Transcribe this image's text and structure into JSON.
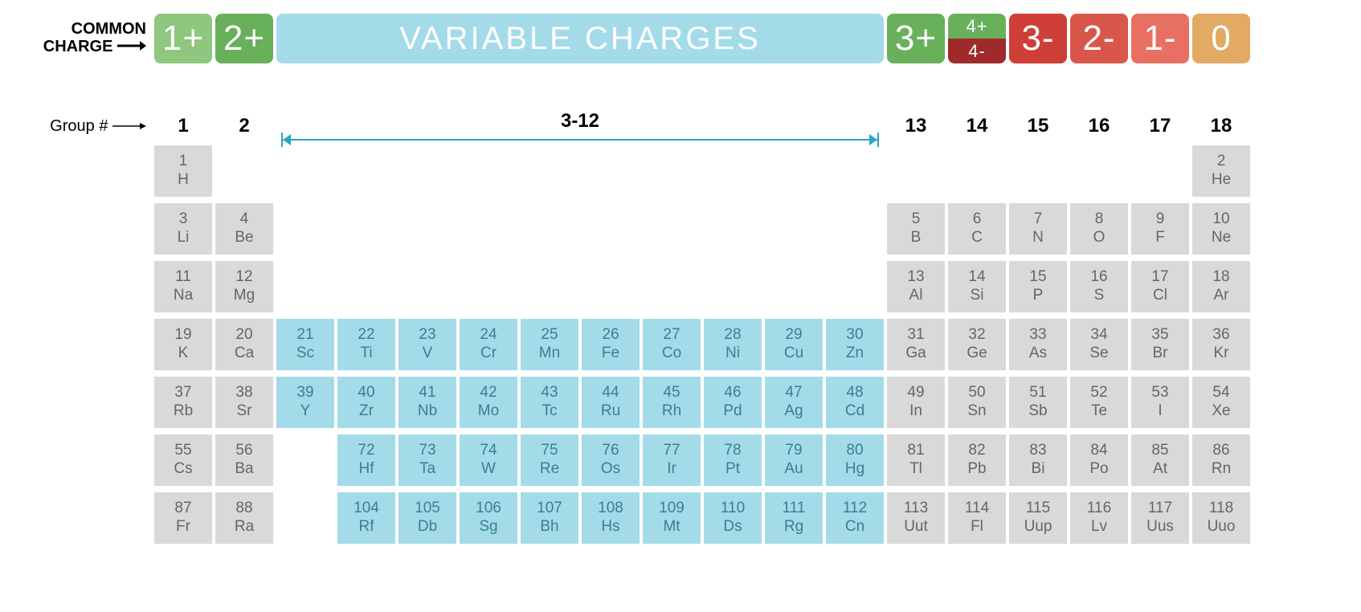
{
  "labels": {
    "common_charge_l1": "COMMON",
    "common_charge_l2": "CHARGE",
    "group_num": "Group #"
  },
  "charges": [
    {
      "text": "1+",
      "bg": "#8fc77e",
      "width_units": 1
    },
    {
      "text": "2+",
      "bg": "#69b05b",
      "width_units": 1
    },
    {
      "text": "VARIABLE CHARGES",
      "bg": "#a4dbe8",
      "width_units": 10,
      "variable": true
    },
    {
      "text": "3+",
      "bg": "#69b05b",
      "width_units": 1
    },
    {
      "split": true,
      "top": "4+",
      "top_bg": "#69b05b",
      "bottom": "4-",
      "bottom_bg": "#9e2a2a",
      "width_units": 1
    },
    {
      "text": "3-",
      "bg": "#ce3f37",
      "width_units": 1
    },
    {
      "text": "2-",
      "bg": "#d9574a",
      "width_units": 1
    },
    {
      "text": "1-",
      "bg": "#e77062",
      "width_units": 1
    },
    {
      "text": "0",
      "bg": "#e2aa63",
      "width_units": 1
    }
  ],
  "group_span": {
    "label": "3-12",
    "line_color": "#2aa7c4"
  },
  "groups_left": [
    "1",
    "2"
  ],
  "groups_right": [
    "13",
    "14",
    "15",
    "16",
    "17",
    "18"
  ],
  "colors": {
    "elem_main_bg": "#d9d9d9",
    "elem_main_fg": "#666666",
    "elem_trans_bg": "#a4dbe8",
    "elem_trans_fg": "#3a7f91"
  },
  "rows": [
    [
      {
        "n": "1",
        "s": "H"
      },
      null,
      null,
      null,
      null,
      null,
      null,
      null,
      null,
      null,
      null,
      null,
      null,
      null,
      null,
      null,
      null,
      {
        "n": "2",
        "s": "He"
      }
    ],
    [
      {
        "n": "3",
        "s": "Li"
      },
      {
        "n": "4",
        "s": "Be"
      },
      null,
      null,
      null,
      null,
      null,
      null,
      null,
      null,
      null,
      null,
      {
        "n": "5",
        "s": "B"
      },
      {
        "n": "6",
        "s": "C"
      },
      {
        "n": "7",
        "s": "N"
      },
      {
        "n": "8",
        "s": "O"
      },
      {
        "n": "9",
        "s": "F"
      },
      {
        "n": "10",
        "s": "Ne"
      }
    ],
    [
      {
        "n": "11",
        "s": "Na"
      },
      {
        "n": "12",
        "s": "Mg"
      },
      null,
      null,
      null,
      null,
      null,
      null,
      null,
      null,
      null,
      null,
      {
        "n": "13",
        "s": "Al"
      },
      {
        "n": "14",
        "s": "Si"
      },
      {
        "n": "15",
        "s": "P"
      },
      {
        "n": "16",
        "s": "S"
      },
      {
        "n": "17",
        "s": "Cl"
      },
      {
        "n": "18",
        "s": "Ar"
      }
    ],
    [
      {
        "n": "19",
        "s": "K"
      },
      {
        "n": "20",
        "s": "Ca"
      },
      {
        "n": "21",
        "s": "Sc",
        "t": true
      },
      {
        "n": "22",
        "s": "Ti",
        "t": true
      },
      {
        "n": "23",
        "s": "V",
        "t": true
      },
      {
        "n": "24",
        "s": "Cr",
        "t": true
      },
      {
        "n": "25",
        "s": "Mn",
        "t": true
      },
      {
        "n": "26",
        "s": "Fe",
        "t": true
      },
      {
        "n": "27",
        "s": "Co",
        "t": true
      },
      {
        "n": "28",
        "s": "Ni",
        "t": true
      },
      {
        "n": "29",
        "s": "Cu",
        "t": true
      },
      {
        "n": "30",
        "s": "Zn",
        "t": true
      },
      {
        "n": "31",
        "s": "Ga"
      },
      {
        "n": "32",
        "s": "Ge"
      },
      {
        "n": "33",
        "s": "As"
      },
      {
        "n": "34",
        "s": "Se"
      },
      {
        "n": "35",
        "s": "Br"
      },
      {
        "n": "36",
        "s": "Kr"
      }
    ],
    [
      {
        "n": "37",
        "s": "Rb"
      },
      {
        "n": "38",
        "s": "Sr"
      },
      {
        "n": "39",
        "s": "Y",
        "t": true
      },
      {
        "n": "40",
        "s": "Zr",
        "t": true
      },
      {
        "n": "41",
        "s": "Nb",
        "t": true
      },
      {
        "n": "42",
        "s": "Mo",
        "t": true
      },
      {
        "n": "43",
        "s": "Tc",
        "t": true
      },
      {
        "n": "44",
        "s": "Ru",
        "t": true
      },
      {
        "n": "45",
        "s": "Rh",
        "t": true
      },
      {
        "n": "46",
        "s": "Pd",
        "t": true
      },
      {
        "n": "47",
        "s": "Ag",
        "t": true
      },
      {
        "n": "48",
        "s": "Cd",
        "t": true
      },
      {
        "n": "49",
        "s": "In"
      },
      {
        "n": "50",
        "s": "Sn"
      },
      {
        "n": "51",
        "s": "Sb"
      },
      {
        "n": "52",
        "s": "Te"
      },
      {
        "n": "53",
        "s": "I"
      },
      {
        "n": "54",
        "s": "Xe"
      }
    ],
    [
      {
        "n": "55",
        "s": "Cs"
      },
      {
        "n": "56",
        "s": "Ba"
      },
      null,
      {
        "n": "72",
        "s": "Hf",
        "t": true
      },
      {
        "n": "73",
        "s": "Ta",
        "t": true
      },
      {
        "n": "74",
        "s": "W",
        "t": true
      },
      {
        "n": "75",
        "s": "Re",
        "t": true
      },
      {
        "n": "76",
        "s": "Os",
        "t": true
      },
      {
        "n": "77",
        "s": "Ir",
        "t": true
      },
      {
        "n": "78",
        "s": "Pt",
        "t": true
      },
      {
        "n": "79",
        "s": "Au",
        "t": true
      },
      {
        "n": "80",
        "s": "Hg",
        "t": true
      },
      {
        "n": "81",
        "s": "Tl"
      },
      {
        "n": "82",
        "s": "Pb"
      },
      {
        "n": "83",
        "s": "Bi"
      },
      {
        "n": "84",
        "s": "Po"
      },
      {
        "n": "85",
        "s": "At"
      },
      {
        "n": "86",
        "s": "Rn"
      }
    ],
    [
      {
        "n": "87",
        "s": "Fr"
      },
      {
        "n": "88",
        "s": "Ra"
      },
      null,
      {
        "n": "104",
        "s": "Rf",
        "t": true
      },
      {
        "n": "105",
        "s": "Db",
        "t": true
      },
      {
        "n": "106",
        "s": "Sg",
        "t": true
      },
      {
        "n": "107",
        "s": "Bh",
        "t": true
      },
      {
        "n": "108",
        "s": "Hs",
        "t": true
      },
      {
        "n": "109",
        "s": "Mt",
        "t": true
      },
      {
        "n": "110",
        "s": "Ds",
        "t": true
      },
      {
        "n": "111",
        "s": "Rg",
        "t": true
      },
      {
        "n": "112",
        "s": "Cn",
        "t": true
      },
      {
        "n": "113",
        "s": "Uut"
      },
      {
        "n": "114",
        "s": "Fl"
      },
      {
        "n": "115",
        "s": "Uup"
      },
      {
        "n": "116",
        "s": "Lv"
      },
      {
        "n": "117",
        "s": "Uus"
      },
      {
        "n": "118",
        "s": "Uuo"
      }
    ]
  ]
}
